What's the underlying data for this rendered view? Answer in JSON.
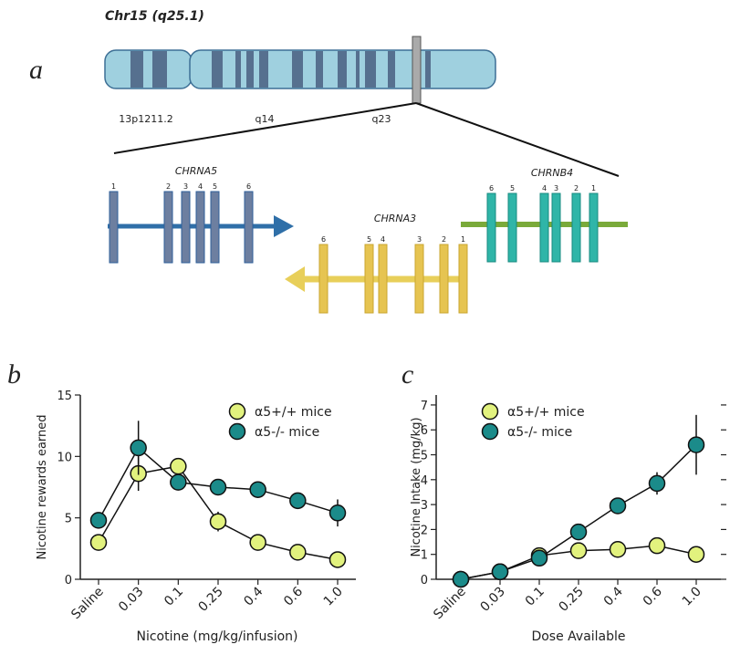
{
  "panel_labels": [
    "a",
    "b",
    "c"
  ],
  "diagram": {
    "chromosome": "Chr15 (q25.1)",
    "bands": [
      "13p1211.2",
      "q14",
      "q23"
    ],
    "genes": [
      {
        "name": "CHRNA5",
        "exons": [
          "1",
          "2",
          "3",
          "4",
          "5",
          "6"
        ]
      },
      {
        "name": "CHRNA3",
        "exons": [
          "6",
          "5",
          "4",
          "3",
          "2",
          "1"
        ]
      },
      {
        "name": "CHRNB4",
        "exons": [
          "6",
          "5",
          "4",
          "3",
          "2",
          "1"
        ]
      }
    ]
  },
  "chart_data": [
    {
      "type": "line",
      "xlabel": "Nicotine (mg/kg/infusion)",
      "ylabel": "Nicotine rewards earned",
      "categories": [
        "Saline",
        "0.03",
        "0.1",
        "0.25",
        "0.4",
        "0.6",
        "1.0"
      ],
      "ylim": [
        0,
        15
      ],
      "yticks": [
        0,
        5,
        10,
        15
      ],
      "legend": "upper right",
      "mirror_yticks": false,
      "series": [
        {
          "name": "α5+/+ mice",
          "color": "#e2f27e",
          "values": [
            3.0,
            8.6,
            9.2,
            4.7,
            3.0,
            2.2,
            1.6
          ],
          "errors": [
            0.3,
            1.4,
            0.5,
            0.8,
            0.3,
            0.3,
            0.2
          ]
        },
        {
          "name": "α5-/- mice",
          "color": "#1b8b8a",
          "values": [
            4.8,
            10.7,
            7.9,
            7.5,
            7.3,
            6.4,
            5.4
          ],
          "errors": [
            0.3,
            2.2,
            0.6,
            0.5,
            0.5,
            0.6,
            1.1
          ]
        }
      ]
    },
    {
      "type": "line",
      "xlabel": "Dose Available",
      "ylabel": "Nicotine Intake (mg/kg)",
      "categories": [
        "Saline",
        "0.03",
        "0.1",
        "0.25",
        "0.4",
        "0.6",
        "1.0"
      ],
      "ylim": [
        0,
        7.4
      ],
      "yticks": [
        0,
        1,
        2,
        3,
        4,
        5,
        6,
        7
      ],
      "legend": "upper left",
      "mirror_yticks": true,
      "series": [
        {
          "name": "α5+/+ mice",
          "color": "#e2f27e",
          "values": [
            0,
            0.3,
            0.95,
            1.15,
            1.2,
            1.35,
            1.0
          ],
          "errors": [
            0,
            0.05,
            0.1,
            0.1,
            0.1,
            0.25,
            0.1
          ]
        },
        {
          "name": "α5-/- mice",
          "color": "#1b8b8a",
          "values": [
            0,
            0.3,
            0.85,
            1.9,
            2.95,
            3.85,
            5.4
          ],
          "errors": [
            0,
            0.05,
            0.1,
            0.15,
            0.2,
            0.45,
            1.2
          ]
        }
      ]
    }
  ]
}
